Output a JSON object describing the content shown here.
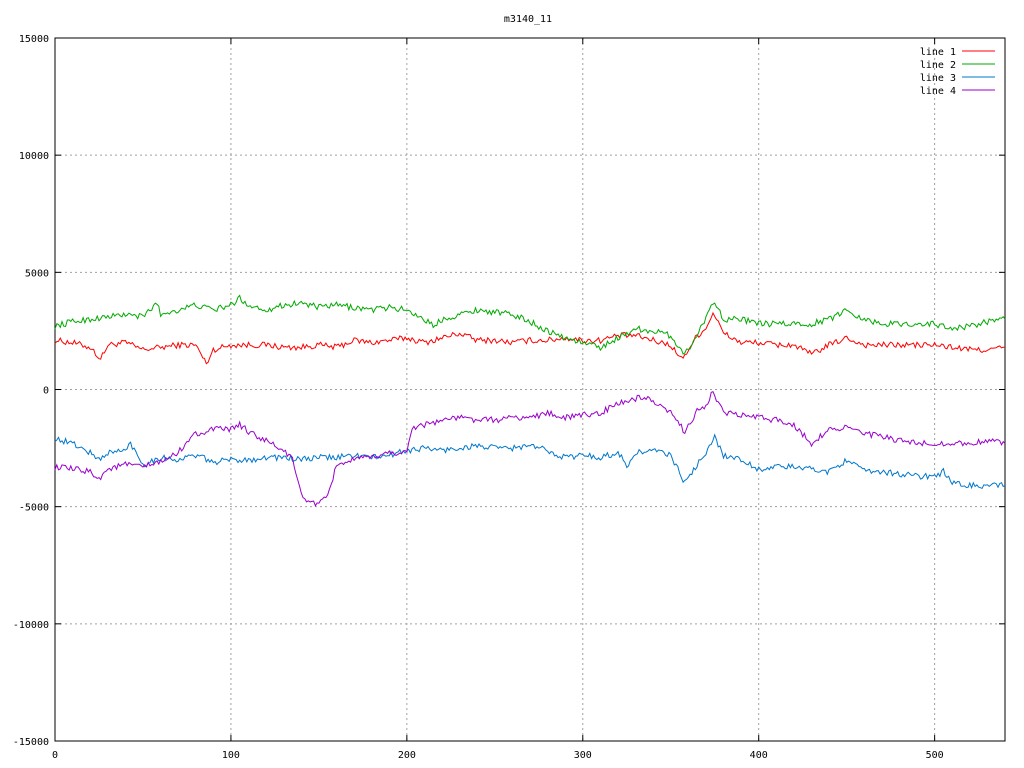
{
  "chart_data": {
    "type": "line",
    "title": "m3140_11",
    "xlabel": "",
    "ylabel": "",
    "xlim": [
      0,
      540
    ],
    "ylim": [
      -15000,
      15000
    ],
    "xticks": [
      0,
      100,
      200,
      300,
      400,
      500
    ],
    "yticks": [
      -15000,
      -10000,
      -5000,
      0,
      5000,
      10000,
      15000
    ],
    "grid": true,
    "legend_position": "top-right",
    "series": [
      {
        "name": "line 1",
        "color": "#ff0000",
        "x": [
          0,
          10,
          20,
          26,
          30,
          40,
          50,
          60,
          70,
          80,
          86,
          90,
          100,
          110,
          120,
          130,
          140,
          150,
          160,
          170,
          180,
          190,
          200,
          210,
          220,
          230,
          240,
          250,
          260,
          270,
          280,
          290,
          300,
          310,
          320,
          330,
          340,
          350,
          356,
          360,
          365,
          370,
          374,
          380,
          390,
          400,
          410,
          420,
          430,
          440,
          450,
          460,
          470,
          480,
          490,
          500,
          510,
          520,
          530,
          540
        ],
        "y": [
          2100,
          2000,
          1800,
          1300,
          1900,
          2000,
          1700,
          1800,
          1900,
          1900,
          1100,
          1700,
          1900,
          1900,
          1900,
          1800,
          1800,
          1900,
          1800,
          2100,
          2000,
          2100,
          2200,
          2000,
          2200,
          2400,
          2100,
          2100,
          2000,
          2100,
          2100,
          2200,
          2100,
          2100,
          2300,
          2300,
          2100,
          1900,
          1300,
          1700,
          2300,
          2600,
          3300,
          2400,
          2000,
          2000,
          1900,
          1900,
          1500,
          1900,
          2200,
          1900,
          1900,
          1900,
          1900,
          1900,
          1800,
          1700,
          1700,
          1800
        ]
      },
      {
        "name": "line 2",
        "color": "#00aa00",
        "x": [
          0,
          10,
          20,
          30,
          40,
          50,
          58,
          60,
          70,
          80,
          90,
          100,
          105,
          110,
          120,
          130,
          140,
          150,
          160,
          170,
          180,
          190,
          200,
          210,
          215,
          220,
          230,
          240,
          250,
          260,
          270,
          280,
          290,
          300,
          310,
          320,
          330,
          340,
          350,
          358,
          365,
          370,
          375,
          380,
          390,
          400,
          410,
          420,
          430,
          440,
          450,
          460,
          470,
          480,
          490,
          500,
          510,
          520,
          530,
          540
        ],
        "y": [
          2700,
          2900,
          3000,
          3100,
          3200,
          3100,
          3700,
          3200,
          3400,
          3600,
          3400,
          3600,
          3900,
          3600,
          3400,
          3600,
          3700,
          3500,
          3600,
          3500,
          3400,
          3500,
          3400,
          3000,
          2700,
          3000,
          3200,
          3400,
          3300,
          3200,
          2900,
          2500,
          2200,
          2000,
          1800,
          2200,
          2600,
          2500,
          2300,
          1500,
          2300,
          3100,
          3800,
          3000,
          3000,
          2800,
          2800,
          2800,
          2800,
          3000,
          3400,
          3000,
          2800,
          2800,
          2800,
          2800,
          2600,
          2700,
          2900,
          3000
        ]
      },
      {
        "name": "line 3",
        "color": "#0077cc",
        "x": [
          0,
          10,
          20,
          25,
          30,
          40,
          43,
          50,
          60,
          70,
          80,
          90,
          100,
          110,
          120,
          130,
          140,
          150,
          160,
          170,
          180,
          190,
          200,
          210,
          220,
          230,
          240,
          250,
          260,
          270,
          280,
          290,
          300,
          310,
          320,
          326,
          330,
          340,
          350,
          358,
          365,
          370,
          375,
          380,
          390,
          400,
          410,
          420,
          430,
          440,
          450,
          460,
          470,
          480,
          490,
          500,
          505,
          510,
          520,
          530,
          540
        ],
        "y": [
          -2100,
          -2300,
          -2700,
          -3000,
          -2700,
          -2600,
          -2300,
          -3200,
          -2900,
          -3000,
          -2800,
          -3100,
          -3000,
          -3000,
          -2900,
          -2900,
          -3000,
          -2900,
          -2900,
          -2800,
          -2900,
          -2800,
          -2600,
          -2500,
          -2600,
          -2500,
          -2400,
          -2500,
          -2500,
          -2400,
          -2600,
          -2900,
          -2800,
          -2900,
          -2700,
          -3300,
          -2700,
          -2600,
          -2800,
          -4000,
          -3200,
          -2800,
          -2000,
          -2800,
          -3000,
          -3400,
          -3300,
          -3300,
          -3400,
          -3500,
          -3000,
          -3500,
          -3500,
          -3600,
          -3700,
          -3700,
          -3500,
          -4000,
          -4100,
          -4100,
          -4100
        ]
      },
      {
        "name": "line 4",
        "color": "#9900cc",
        "x": [
          0,
          10,
          20,
          25,
          30,
          40,
          50,
          60,
          70,
          75,
          80,
          90,
          100,
          105,
          110,
          120,
          130,
          135,
          140,
          145,
          150,
          155,
          160,
          170,
          180,
          190,
          200,
          203,
          210,
          220,
          230,
          240,
          250,
          260,
          270,
          280,
          290,
          300,
          310,
          320,
          330,
          335,
          340,
          350,
          358,
          365,
          370,
          374,
          380,
          390,
          400,
          410,
          420,
          430,
          440,
          450,
          460,
          470,
          480,
          490,
          500,
          510,
          520,
          530,
          540
        ],
        "y": [
          -3300,
          -3400,
          -3500,
          -3800,
          -3400,
          -3200,
          -3300,
          -3100,
          -2700,
          -2200,
          -1900,
          -1700,
          -1700,
          -1500,
          -1800,
          -2200,
          -2600,
          -3000,
          -4500,
          -4800,
          -4900,
          -4600,
          -3200,
          -3000,
          -2900,
          -2700,
          -2700,
          -1600,
          -1500,
          -1300,
          -1200,
          -1300,
          -1300,
          -1200,
          -1200,
          -1000,
          -1200,
          -1100,
          -1000,
          -600,
          -400,
          -300,
          -600,
          -1000,
          -1800,
          -900,
          -700,
          -100,
          -1000,
          -1100,
          -1200,
          -1300,
          -1500,
          -2300,
          -1700,
          -1600,
          -1900,
          -2000,
          -2200,
          -2300,
          -2300,
          -2300,
          -2300,
          -2200,
          -2300
        ]
      }
    ]
  }
}
